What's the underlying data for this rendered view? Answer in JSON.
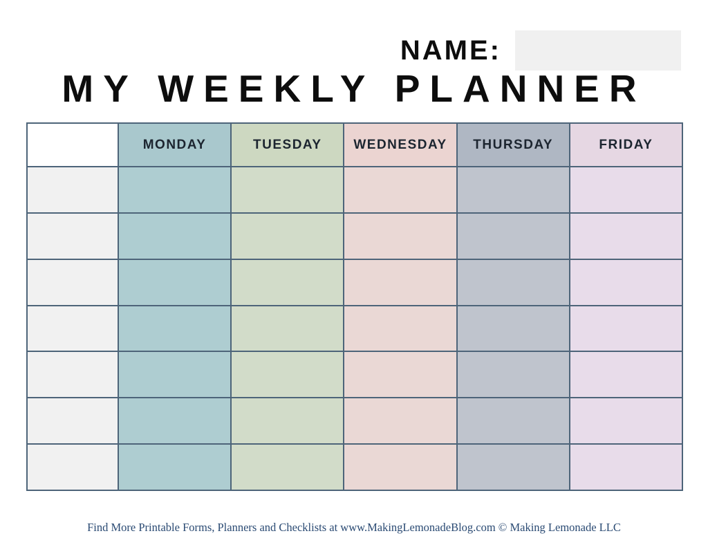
{
  "header": {
    "name_label": "NAME:",
    "title": "MY WEEKLY PLANNER",
    "title_color": "#0d0d0d"
  },
  "name_box": {
    "value": "",
    "bg": "#f0f0f0"
  },
  "table": {
    "border_color": "#4d6479",
    "header_text_color": "#1c2530",
    "body_row_count": 7,
    "columns": [
      {
        "id": "blank",
        "label": "",
        "header_bg": "#ffffff",
        "body_bg": "#f1f1f1"
      },
      {
        "id": "monday",
        "label": "MONDAY",
        "header_bg": "#a9c8cd",
        "body_bg": "#aecdd1"
      },
      {
        "id": "tuesday",
        "label": "TUESDAY",
        "header_bg": "#cdd8c1",
        "body_bg": "#d2dcc9"
      },
      {
        "id": "wednesday",
        "label": "WEDNESDAY",
        "header_bg": "#ebd4d1",
        "body_bg": "#ead8d5"
      },
      {
        "id": "thursday",
        "label": "THURSDAY",
        "header_bg": "#afb7c3",
        "body_bg": "#bfc4cd"
      },
      {
        "id": "friday",
        "label": "FRIDAY",
        "header_bg": "#e6d7e3",
        "body_bg": "#e8dcea"
      }
    ]
  },
  "footer": {
    "text": "Find More Printable Forms, Planners and Checklists at www.MakingLemonadeBlog.com © Making Lemonade LLC",
    "color": "#2a4a73"
  }
}
